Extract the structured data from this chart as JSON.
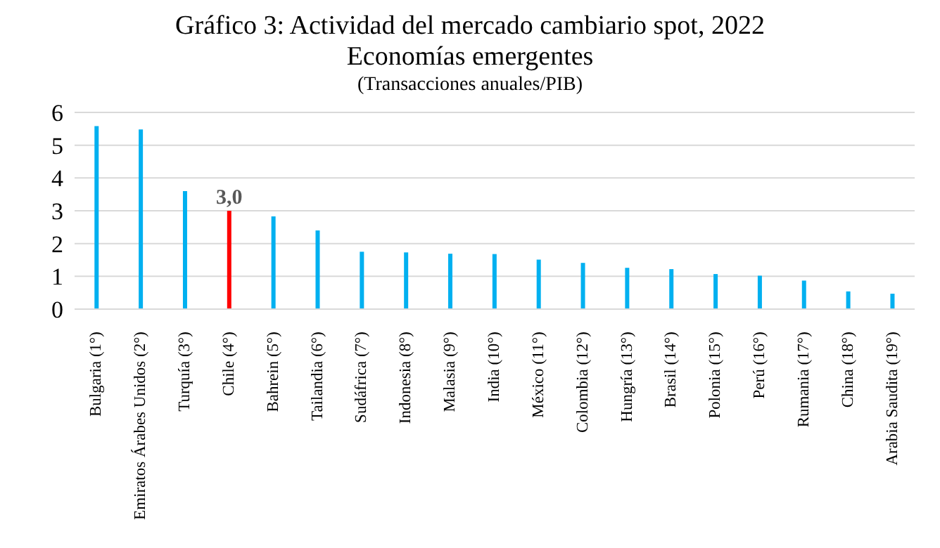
{
  "chart_data": {
    "type": "bar",
    "title": "Gráfico 3: Actividad del mercado cambiario spot, 2022",
    "subtitle": "Economías emergentes",
    "annotations": [
      "(Transacciones anuales/PIB)"
    ],
    "categories": [
      "Bulgaria (1°)",
      "Emiratos Árabes Unidos (2°)",
      "Turquía (3°)",
      "Chile (4°)",
      "Bahrein (5°)",
      "Tailandia (6°)",
      "Sudáfrica (7°)",
      "Indonesia (8°)",
      "Malasia (9°)",
      "India (10°)",
      "México (11°)",
      "Colombia (12°)",
      "Hungría (13°)",
      "Brasil (14°)",
      "Polonia (15°)",
      "Perú (16°)",
      "Rumania (17°)",
      "China (18°)",
      "Arabia Saudita (19°)"
    ],
    "values": [
      5.58,
      5.48,
      3.6,
      3.0,
      2.83,
      2.4,
      1.75,
      1.73,
      1.69,
      1.68,
      1.51,
      1.41,
      1.26,
      1.22,
      1.07,
      1.02,
      0.87,
      0.54,
      0.47
    ],
    "value_labels": [
      null,
      null,
      null,
      "3,0",
      null,
      null,
      null,
      null,
      null,
      null,
      null,
      null,
      null,
      null,
      null,
      null,
      null,
      null,
      null
    ],
    "colors": [
      "#00b0f0",
      "#00b0f0",
      "#00b0f0",
      "#ff0000",
      "#00b0f0",
      "#00b0f0",
      "#00b0f0",
      "#00b0f0",
      "#00b0f0",
      "#00b0f0",
      "#00b0f0",
      "#00b0f0",
      "#00b0f0",
      "#00b0f0",
      "#00b0f0",
      "#00b0f0",
      "#00b0f0",
      "#00b0f0",
      "#00b0f0"
    ],
    "ylim": [
      0,
      6
    ],
    "yticks": [
      0,
      1,
      2,
      3,
      4,
      5,
      6
    ],
    "grid": "y"
  }
}
